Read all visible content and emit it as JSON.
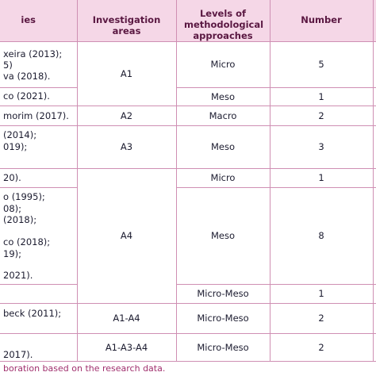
{
  "table": {
    "header": [
      "ies",
      "Investigation areas",
      "Levels of methodological approaches",
      "Number"
    ],
    "areas": [
      "A1",
      "A2",
      "A3",
      "A4",
      "A1-A4",
      "A1-A3-A4"
    ],
    "rows": [
      {
        "studies": [
          "xeira (2013);",
          "5)",
          "va (2018)."
        ],
        "level": "Micro",
        "number": 5
      },
      {
        "studies": [
          "co (2021)."
        ],
        "level": "Meso",
        "number": 1
      },
      {
        "studies": [
          "morim (2017)."
        ],
        "level": "Macro",
        "number": 2
      },
      {
        "studies": [
          "(2014);",
          "019);"
        ],
        "level": "Meso",
        "number": 3
      },
      {
        "studies": [
          "20)."
        ],
        "level": "Micro",
        "number": 1
      },
      {
        "studies": [
          "o (1995);",
          "08);",
          "(2018);",
          "co (2018);",
          "19);",
          "2021)."
        ],
        "level": "Meso",
        "number": 8
      },
      {
        "studies": [],
        "level": "Micro-Meso",
        "number": 1
      },
      {
        "studies": [
          "beck (2011);"
        ],
        "level": "Micro-Meso",
        "number": 2
      },
      {
        "studies": [
          "2017)."
        ],
        "level": "Micro-Meso",
        "number": 2
      }
    ],
    "footer": "boration based on the research data."
  }
}
